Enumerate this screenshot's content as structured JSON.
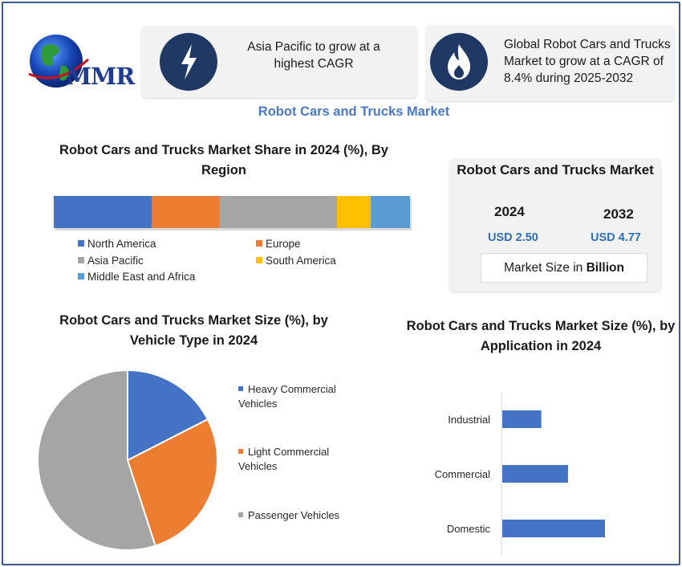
{
  "brand": {
    "logo_text": "MMR"
  },
  "info_boxes": [
    {
      "icon": "lightning-bolt-icon",
      "text": "Asia Pacific to grow at a highest CAGR"
    },
    {
      "icon": "flame-icon",
      "text": "Global Robot Cars and Trucks Market to grow at a CAGR of 8.4% during 2025-2032"
    }
  ],
  "main_title": "Robot Cars and Trucks Market",
  "market_box": {
    "title": "Robot Cars and Trucks Market",
    "year_a": "2024",
    "value_a": "USD 2.50",
    "year_b": "2032",
    "value_b": "USD 4.77",
    "unit_prefix": "Market Size in ",
    "unit_bold": "Billion"
  },
  "colors": {
    "blue": "#4472c4",
    "orange": "#ed7d31",
    "gray": "#a5a5a5",
    "yellow": "#ffc000",
    "light_blue": "#5b9bd5",
    "accent_title": "#4a78c2",
    "icon_bg": "#1f3864"
  },
  "chart_data": [
    {
      "type": "bar",
      "orientation": "stacked-horizontal",
      "title": "Robot Cars and Trucks Market Share in 2024 (%), By Region",
      "series": [
        {
          "name": "North America",
          "values": [
            27.5
          ],
          "color": "#4472c4"
        },
        {
          "name": "Europe",
          "values": [
            19.0
          ],
          "color": "#ed7d31"
        },
        {
          "name": "Asia Pacific",
          "values": [
            33.0
          ],
          "color": "#a5a5a5"
        },
        {
          "name": "South America",
          "values": [
            9.5
          ],
          "color": "#ffc000"
        },
        {
          "name": "Middle East and Africa",
          "values": [
            11.0
          ],
          "color": "#5b9bd5"
        }
      ],
      "legend_placement": "bottom"
    },
    {
      "type": "pie",
      "title": "Robot Cars and Trucks Market Size (%), by Vehicle Type in 2024",
      "categories": [
        "Heavy Commercial Vehicles",
        "Light Commercial Vehicles",
        "Passenger Vehicles"
      ],
      "values": [
        17.5,
        27.5,
        55.0
      ],
      "colors": [
        "#4472c4",
        "#ed7d31",
        "#a5a5a5"
      ],
      "legend_placement": "right"
    },
    {
      "type": "bar",
      "orientation": "horizontal",
      "title": "Robot Cars and Trucks Market Size (%), by Application in 2024",
      "categories": [
        "Industrial",
        "Commercial",
        "Domestic"
      ],
      "values": [
        19,
        32,
        50
      ],
      "xlim": [
        0,
        100
      ],
      "color": "#4472c4",
      "grid": false
    }
  ]
}
